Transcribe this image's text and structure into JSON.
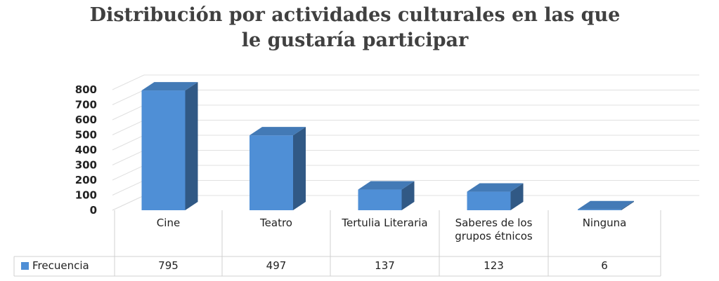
{
  "chart_data": {
    "type": "bar3d",
    "title": [
      "Distribución por actividades culturales en las que",
      "le gustaría participar"
    ],
    "categories": [
      "Cine",
      "Teatro",
      "Tertulia Literaria",
      "Saberes de los grupos étnicos",
      "Ninguna"
    ],
    "series": [
      {
        "name": "Frecuencia",
        "color": "#4f8fd6",
        "values": [
          795,
          497,
          137,
          123,
          6
        ]
      }
    ],
    "ylim": [
      0,
      800
    ],
    "yticks": [
      0,
      100,
      200,
      300,
      400,
      500,
      600,
      700,
      800
    ],
    "grid": true,
    "legend": "table"
  }
}
